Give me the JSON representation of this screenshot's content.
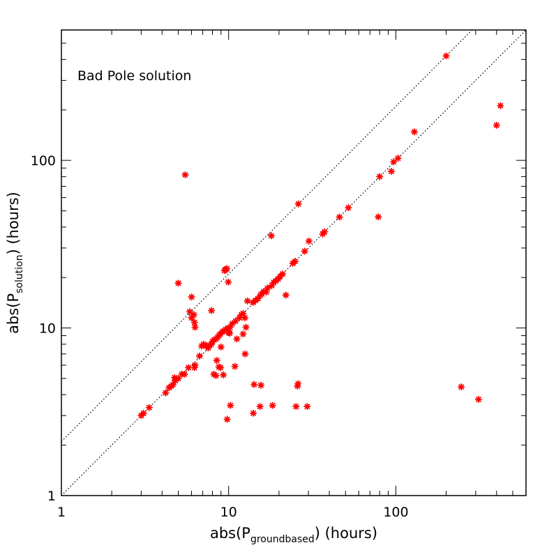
{
  "chart_data": {
    "type": "scatter",
    "title": "",
    "annotation": "Bad Pole solution",
    "xlabel": {
      "prefix": "abs(P",
      "subscript": "groundbased",
      "suffix": ")  (hours)"
    },
    "ylabel": {
      "prefix": "abs(P",
      "subscript": "solution",
      "suffix": ")  (hours)"
    },
    "xscale": "log",
    "yscale": "log",
    "xlim": [
      1,
      600
    ],
    "ylim": [
      1,
      600
    ],
    "grid": false,
    "marker_color": "#ff0000",
    "marker": "asterisk",
    "x_tick_labels": [
      "1",
      "10",
      "100"
    ],
    "y_tick_labels": [
      "1",
      "10",
      "100"
    ],
    "reference_lines": [
      {
        "name": "",
        "slope": 1,
        "factor": 1,
        "style": "dotted"
      },
      {
        "name": "",
        "slope": 1,
        "factor": 2.1,
        "style": "dotted"
      }
    ],
    "series": [
      {
        "name": "",
        "points": [
          [
            3.0,
            3.0
          ],
          [
            3.1,
            3.1
          ],
          [
            3.35,
            3.35
          ],
          [
            4.2,
            4.1
          ],
          [
            4.4,
            4.4
          ],
          [
            4.55,
            4.5
          ],
          [
            4.65,
            4.6
          ],
          [
            4.8,
            4.85
          ],
          [
            4.75,
            5.05
          ],
          [
            5.0,
            5.0
          ],
          [
            5.25,
            5.3
          ],
          [
            5.45,
            5.3
          ],
          [
            5.5,
            82.0
          ],
          [
            5.0,
            18.5
          ],
          [
            5.75,
            5.8
          ],
          [
            6.25,
            5.8
          ],
          [
            6.3,
            6.0
          ],
          [
            5.85,
            12.5
          ],
          [
            6.0,
            15.3
          ],
          [
            6.0,
            11.5
          ],
          [
            6.2,
            12.0
          ],
          [
            6.25,
            10.8
          ],
          [
            6.3,
            10.1
          ],
          [
            6.7,
            6.8
          ],
          [
            6.9,
            7.8
          ],
          [
            7.1,
            8.0
          ],
          [
            7.35,
            7.8
          ],
          [
            7.55,
            7.6
          ],
          [
            7.7,
            7.9
          ],
          [
            7.9,
            8.0
          ],
          [
            8.0,
            8.3
          ],
          [
            8.2,
            8.5
          ],
          [
            8.4,
            8.6
          ],
          [
            8.6,
            8.8
          ],
          [
            8.75,
            9.0
          ],
          [
            8.9,
            9.2
          ],
          [
            9.2,
            9.5
          ],
          [
            9.4,
            9.6
          ],
          [
            9.6,
            9.8
          ],
          [
            9.9,
            10.0
          ],
          [
            10.2,
            10.1
          ],
          [
            10.5,
            10.6
          ],
          [
            7.9,
            12.7
          ],
          [
            8.15,
            5.3
          ],
          [
            8.4,
            5.2
          ],
          [
            8.5,
            6.4
          ],
          [
            8.75,
            5.85
          ],
          [
            8.95,
            5.8
          ],
          [
            9.3,
            5.25
          ],
          [
            9.0,
            7.7
          ],
          [
            10.9,
            5.9
          ],
          [
            11.2,
            8.6
          ],
          [
            12.2,
            9.2
          ],
          [
            12.55,
            7.0
          ],
          [
            9.45,
            22.0
          ],
          [
            9.6,
            22.3
          ],
          [
            9.75,
            22.6
          ],
          [
            9.95,
            18.8
          ],
          [
            10.0,
            9.4
          ],
          [
            10.15,
            9.3
          ],
          [
            9.8,
            2.85
          ],
          [
            10.25,
            3.45
          ],
          [
            11.0,
            11.0
          ],
          [
            11.6,
            11.5
          ],
          [
            11.9,
            12.0
          ],
          [
            12.2,
            12.2
          ],
          [
            12.5,
            11.5
          ],
          [
            12.7,
            10.1
          ],
          [
            12.95,
            14.5
          ],
          [
            14.0,
            14.2
          ],
          [
            14.5,
            14.6
          ],
          [
            15.0,
            15.0
          ],
          [
            15.5,
            15.7
          ],
          [
            15.8,
            16.0
          ],
          [
            16.2,
            16.5
          ],
          [
            16.8,
            16.4
          ],
          [
            17.1,
            17.3
          ],
          [
            18.1,
            17.9
          ],
          [
            18.6,
            18.7
          ],
          [
            19.1,
            19.1
          ],
          [
            19.8,
            19.6
          ],
          [
            20.3,
            20.3
          ],
          [
            21.0,
            21.0
          ],
          [
            22.0,
            15.7
          ],
          [
            24.2,
            24.3
          ],
          [
            25.0,
            25.0
          ],
          [
            26.1,
            55.0
          ],
          [
            18.0,
            35.5
          ],
          [
            28.5,
            28.7
          ],
          [
            30.2,
            33.0
          ],
          [
            36.5,
            36.4
          ],
          [
            37.5,
            37.5
          ],
          [
            46.0,
            45.9
          ],
          [
            52.0,
            52.2
          ],
          [
            78.5,
            46.0
          ],
          [
            80.0,
            80.0
          ],
          [
            94.0,
            86.0
          ],
          [
            97.0,
            98.0
          ],
          [
            103.0,
            103.0
          ],
          [
            129.0,
            148.0
          ],
          [
            200.0,
            420.0
          ],
          [
            400.0,
            162.0
          ],
          [
            422.0,
            212.0
          ],
          [
            14.2,
            4.6
          ],
          [
            15.6,
            4.55
          ],
          [
            14.05,
            3.1
          ],
          [
            15.4,
            3.4
          ],
          [
            18.3,
            3.45
          ],
          [
            25.3,
            3.4
          ],
          [
            25.8,
            4.5
          ],
          [
            26.0,
            4.65
          ],
          [
            29.5,
            3.4
          ],
          [
            246.0,
            4.45
          ],
          [
            312.0,
            3.75
          ]
        ]
      }
    ]
  }
}
